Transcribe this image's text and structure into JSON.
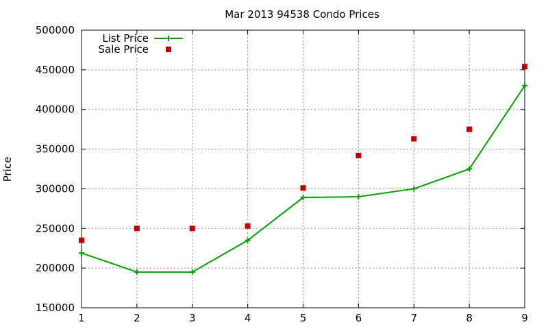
{
  "chart_data": {
    "type": "line",
    "title": "Mar 2013 94538 Condo Prices",
    "xlabel": "",
    "ylabel": "Price",
    "xlim": [
      1,
      9
    ],
    "ylim": [
      150000,
      500000
    ],
    "x_ticks": [
      1,
      2,
      3,
      4,
      5,
      6,
      7,
      8,
      9
    ],
    "y_ticks": [
      150000,
      200000,
      250000,
      300000,
      350000,
      400000,
      450000,
      500000
    ],
    "x_tick_labels": [
      "1",
      "2",
      "3",
      "4",
      "5",
      "6",
      "7",
      "8",
      "9"
    ],
    "y_tick_labels": [
      "150000",
      "200000",
      "250000",
      "300000",
      "350000",
      "400000",
      "450000",
      "500000"
    ],
    "grid": true,
    "legend_position": "top-left",
    "series": [
      {
        "name": "List Price",
        "style": "line-with-plus-markers",
        "color": "#00a000",
        "x": [
          1,
          2,
          3,
          4,
          5,
          6,
          7,
          8,
          9
        ],
        "values": [
          219000,
          195000,
          195000,
          235000,
          289000,
          290000,
          300000,
          325000,
          430000
        ]
      },
      {
        "name": "Sale Price",
        "style": "square-markers",
        "color": "#c00000",
        "x": [
          1,
          2,
          3,
          4,
          5,
          6,
          7,
          8,
          9
        ],
        "values": [
          235000,
          250000,
          250000,
          253000,
          301000,
          342000,
          363000,
          375000,
          454000
        ]
      }
    ]
  }
}
